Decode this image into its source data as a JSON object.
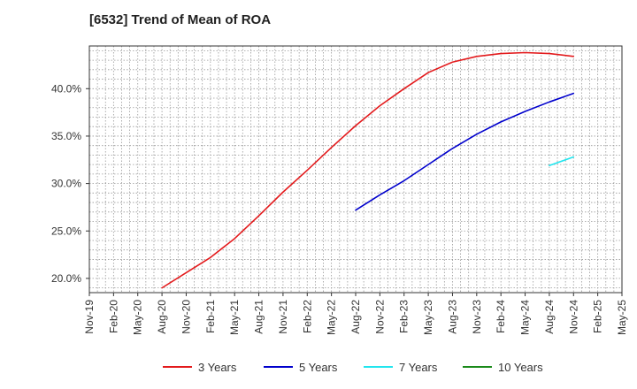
{
  "chart_data": {
    "type": "line",
    "title": "[6532]  Trend of Mean of ROA",
    "x": [
      "Nov-19",
      "Feb-20",
      "May-20",
      "Aug-20",
      "Nov-20",
      "Feb-21",
      "May-21",
      "Aug-21",
      "Nov-21",
      "Feb-22",
      "May-22",
      "Aug-22",
      "Nov-22",
      "Feb-23",
      "May-23",
      "Aug-23",
      "Nov-23",
      "Feb-24",
      "May-24",
      "Aug-24",
      "Nov-24",
      "Feb-25",
      "May-25"
    ],
    "ylim": [
      18.5,
      44.5
    ],
    "yticks": [
      20,
      25,
      30,
      35,
      40
    ],
    "ytick_labels": [
      "20.0%",
      "25.0%",
      "30.0%",
      "35.0%",
      "40.0%"
    ],
    "grid": true,
    "legend_position": "bottom",
    "series": [
      {
        "name": "3 Years",
        "color": "#e31a1c",
        "values": [
          null,
          null,
          null,
          19.0,
          20.6,
          22.2,
          24.2,
          26.6,
          29.1,
          31.4,
          33.8,
          36.1,
          38.2,
          40.0,
          41.7,
          42.8,
          43.4,
          43.7,
          43.8,
          43.7,
          43.4,
          null,
          null
        ]
      },
      {
        "name": "5 Years",
        "color": "#0000cc",
        "values": [
          null,
          null,
          null,
          null,
          null,
          null,
          null,
          null,
          null,
          null,
          null,
          27.2,
          28.8,
          30.3,
          32.0,
          33.7,
          35.2,
          36.5,
          37.6,
          38.6,
          39.5,
          null,
          null
        ]
      },
      {
        "name": "7 Years",
        "color": "#22e5ee",
        "values": [
          null,
          null,
          null,
          null,
          null,
          null,
          null,
          null,
          null,
          null,
          null,
          null,
          null,
          null,
          null,
          null,
          null,
          null,
          null,
          31.9,
          32.8,
          null,
          null
        ]
      },
      {
        "name": "10 Years",
        "color": "#1a8a1a",
        "values": [
          null,
          null,
          null,
          null,
          null,
          null,
          null,
          null,
          null,
          null,
          null,
          null,
          null,
          null,
          null,
          null,
          null,
          null,
          null,
          null,
          null,
          null,
          null
        ]
      }
    ]
  }
}
